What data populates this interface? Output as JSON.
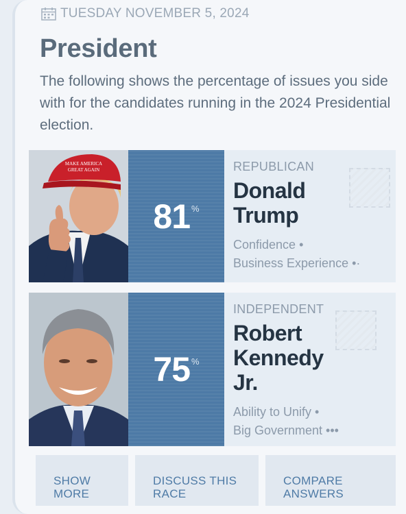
{
  "date": "TUESDAY NOVEMBER 5, 2024",
  "section_title": "President",
  "description": "The following shows the percentage of issues you side with for the candidates running in the 2024 Presidential election.",
  "candidates": [
    {
      "party": "REPUBLICAN",
      "name_lines": [
        "Donald",
        "Trump"
      ],
      "score": "81",
      "score_unit": "%",
      "issues": [
        "Confidence •",
        "Business Experience •·"
      ],
      "hat_text_1": "MAKE AMERICA",
      "hat_text_2": "GREAT AGAIN",
      "accent_color": "#4d7aa6"
    },
    {
      "party": "INDEPENDENT",
      "name_lines": [
        "Robert",
        "Kennedy",
        "Jr."
      ],
      "score": "75",
      "score_unit": "%",
      "issues": [
        "Ability to Unify •",
        "Big Government •••"
      ],
      "accent_color": "#4d7aa6"
    }
  ],
  "actions": {
    "show_more": [
      "SHOW",
      "MORE"
    ],
    "discuss": [
      "DISCUSS THIS",
      "RACE"
    ],
    "compare": [
      "COMPARE",
      "ANSWERS"
    ]
  }
}
